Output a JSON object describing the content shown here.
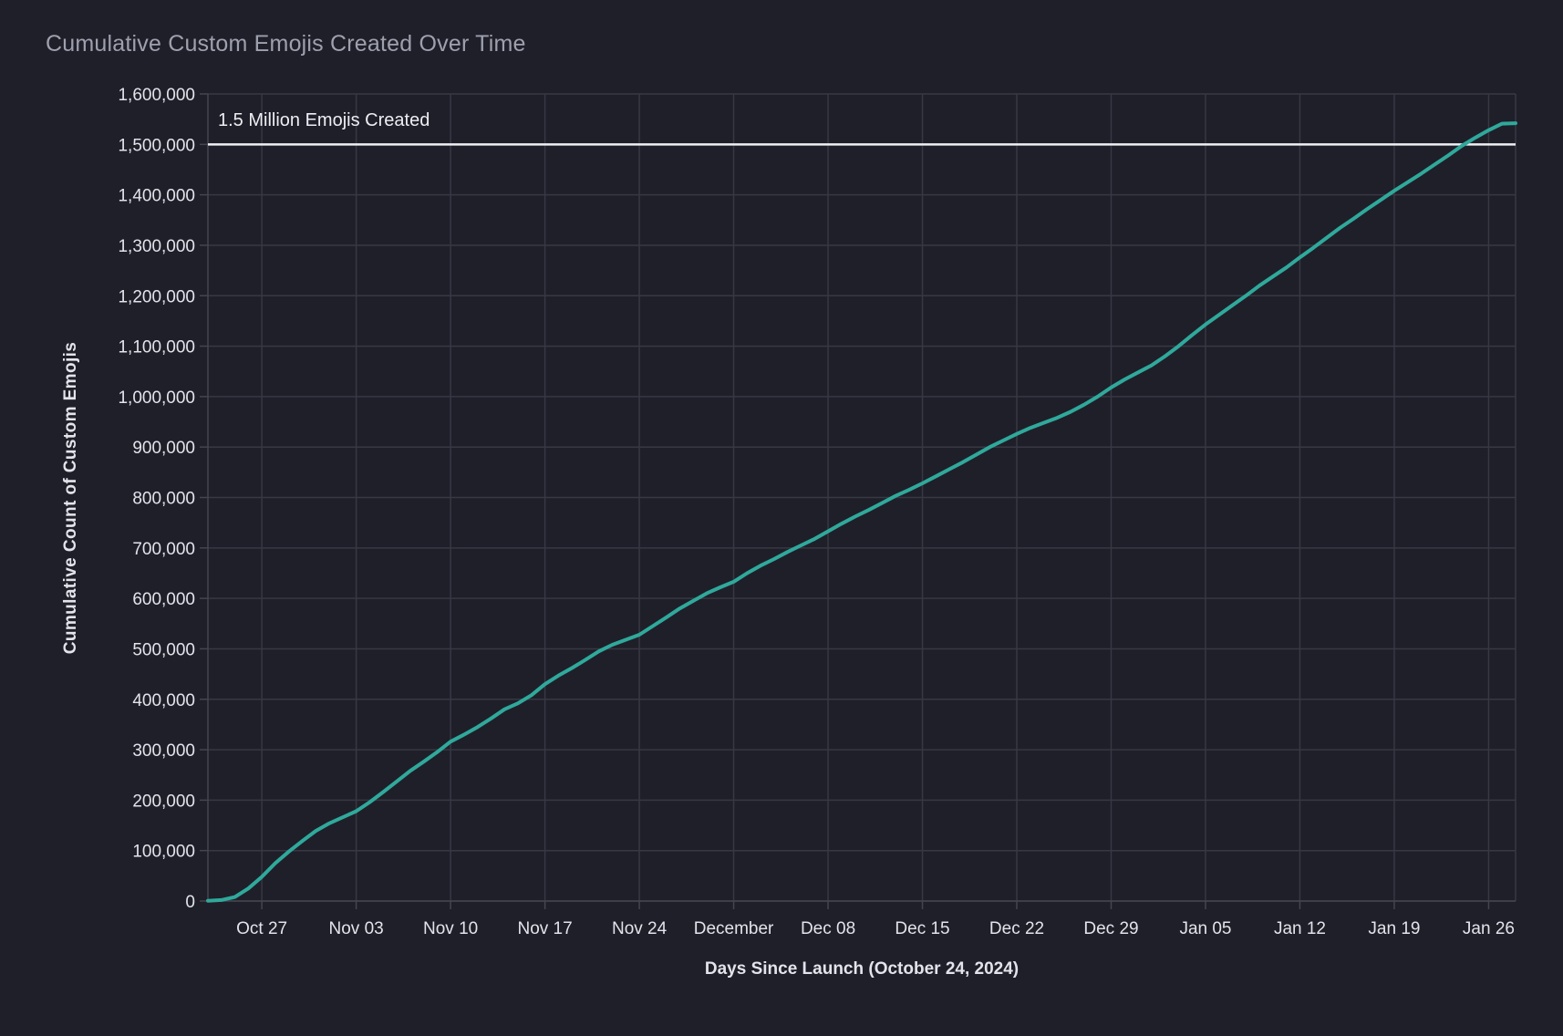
{
  "page": {
    "background": "#1f1f29"
  },
  "chart_data": {
    "type": "line",
    "title": "Cumulative Custom Emojis Created Over Time",
    "xlabel": "Days Since Launch (October 24, 2024)",
    "ylabel": "Cumulative Count of Custom Emojis",
    "series_name": "cumulative-custom-emojis",
    "line_color": "#2fa99b",
    "grid": true,
    "legend": false,
    "ylim": [
      0,
      1600000
    ],
    "y_tick_step": 100000,
    "x": [
      "2024-10-23",
      "2024-10-24",
      "2024-10-25",
      "2024-10-26",
      "2024-10-27",
      "2024-10-28",
      "2024-10-29",
      "2024-10-30",
      "2024-10-31",
      "2024-11-01",
      "2024-11-02",
      "2024-11-03",
      "2024-11-04",
      "2024-11-05",
      "2024-11-06",
      "2024-11-07",
      "2024-11-08",
      "2024-11-09",
      "2024-11-10",
      "2024-11-11",
      "2024-11-12",
      "2024-11-13",
      "2024-11-14",
      "2024-11-15",
      "2024-11-16",
      "2024-11-17",
      "2024-11-18",
      "2024-11-19",
      "2024-11-20",
      "2024-11-21",
      "2024-11-22",
      "2024-11-23",
      "2024-11-24",
      "2024-11-25",
      "2024-11-26",
      "2024-11-27",
      "2024-11-28",
      "2024-11-29",
      "2024-11-30",
      "2024-12-01",
      "2024-12-02",
      "2024-12-03",
      "2024-12-04",
      "2024-12-05",
      "2024-12-06",
      "2024-12-07",
      "2024-12-08",
      "2024-12-09",
      "2024-12-10",
      "2024-12-11",
      "2024-12-12",
      "2024-12-13",
      "2024-12-14",
      "2024-12-15",
      "2024-12-16",
      "2024-12-17",
      "2024-12-18",
      "2024-12-19",
      "2024-12-20",
      "2024-12-21",
      "2024-12-22",
      "2024-12-23",
      "2024-12-24",
      "2024-12-25",
      "2024-12-26",
      "2024-12-27",
      "2024-12-28",
      "2024-12-29",
      "2024-12-30",
      "2024-12-31",
      "2025-01-01",
      "2025-01-02",
      "2025-01-03",
      "2025-01-04",
      "2025-01-05",
      "2025-01-06",
      "2025-01-07",
      "2025-01-08",
      "2025-01-09",
      "2025-01-10",
      "2025-01-11",
      "2025-01-12",
      "2025-01-13",
      "2025-01-14",
      "2025-01-15",
      "2025-01-16",
      "2025-01-17",
      "2025-01-18",
      "2025-01-19",
      "2025-01-20",
      "2025-01-21",
      "2025-01-22",
      "2025-01-23",
      "2025-01-24",
      "2025-01-25",
      "2025-01-26",
      "2025-01-27",
      "2025-01-28"
    ],
    "values": [
      500,
      2000,
      8000,
      25000,
      48000,
      75000,
      98000,
      119000,
      139000,
      154000,
      166000,
      178000,
      196000,
      216000,
      237000,
      258000,
      276000,
      295000,
      316000,
      330000,
      345000,
      362000,
      380000,
      392000,
      408000,
      430000,
      447000,
      462000,
      478000,
      495000,
      508000,
      518000,
      528000,
      545000,
      562000,
      580000,
      595000,
      610000,
      622000,
      633000,
      650000,
      665000,
      678000,
      692000,
      705000,
      718000,
      733000,
      748000,
      762000,
      775000,
      789000,
      803000,
      815000,
      828000,
      842000,
      856000,
      870000,
      885000,
      900000,
      913000,
      926000,
      938000,
      948000,
      958000,
      970000,
      984000,
      1000000,
      1018000,
      1034000,
      1048000,
      1062000,
      1080000,
      1100000,
      1122000,
      1143000,
      1162000,
      1181000,
      1200000,
      1220000,
      1238000,
      1256000,
      1276000,
      1295000,
      1315000,
      1335000,
      1353000,
      1372000,
      1390000,
      1408000,
      1425000,
      1442000,
      1460000,
      1478000,
      1497000,
      1513000,
      1528000,
      1541000,
      1542000
    ],
    "x_ticks": [
      {
        "date": "2024-10-27",
        "label": "Oct 27"
      },
      {
        "date": "2024-11-03",
        "label": "Nov 03"
      },
      {
        "date": "2024-11-10",
        "label": "Nov 10"
      },
      {
        "date": "2024-11-17",
        "label": "Nov 17"
      },
      {
        "date": "2024-11-24",
        "label": "Nov 24"
      },
      {
        "date": "2024-12-01",
        "label": "December"
      },
      {
        "date": "2024-12-08",
        "label": "Dec 08"
      },
      {
        "date": "2024-12-15",
        "label": "Dec 15"
      },
      {
        "date": "2024-12-22",
        "label": "Dec 22"
      },
      {
        "date": "2024-12-29",
        "label": "Dec 29"
      },
      {
        "date": "2025-01-05",
        "label": "Jan 05"
      },
      {
        "date": "2025-01-12",
        "label": "Jan 12"
      },
      {
        "date": "2025-01-19",
        "label": "Jan 19"
      },
      {
        "date": "2025-01-26",
        "label": "Jan 26"
      }
    ],
    "reference_line": {
      "value": 1500000,
      "label": "1.5 Million Emojis Created",
      "color": "#eef0f4"
    }
  },
  "colors": {
    "background": "#1f1f29",
    "gridline": "#383844",
    "axis_line": "#45454f",
    "tick_label": "#e3e3eb",
    "title": "#9fa0ae",
    "annotation": "#edeef3",
    "series": "#2fa99b",
    "reference": "#eef0f4"
  }
}
